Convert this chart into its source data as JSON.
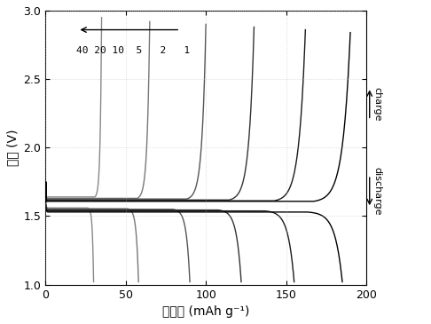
{
  "xlabel": "比容量 (mAh g⁻¹)",
  "ylabel": "电压 (V)",
  "xlim": [
    0,
    200
  ],
  "ylim": [
    1.0,
    3.0
  ],
  "xticks": [
    0,
    50,
    100,
    150,
    200
  ],
  "yticks": [
    1.0,
    1.5,
    2.0,
    2.5,
    3.0
  ],
  "background_color": "#ffffff",
  "figsize": [
    4.86,
    3.65
  ],
  "dpi": 100,
  "charge_capacities": [
    35,
    65,
    100,
    130,
    162,
    190
  ],
  "discharge_capacities": [
    30,
    58,
    90,
    122,
    155,
    185
  ],
  "charge_plateaus": [
    1.64,
    1.63,
    1.625,
    1.618,
    1.612,
    1.608
  ],
  "discharge_plateaus": [
    1.56,
    1.555,
    1.55,
    1.545,
    1.538,
    1.53
  ],
  "curve_colors": [
    "#000000",
    "#1a1a1a",
    "#2d2d2d",
    "#4d4d4d",
    "#777777",
    "#aaaaaa"
  ],
  "spike_color": "#000000",
  "charge_end_voltages": [
    2.95,
    2.92,
    2.9,
    2.88,
    2.86,
    2.84
  ],
  "discharge_end_voltages": [
    1.02,
    1.02,
    1.02,
    1.02,
    1.02,
    1.02
  ]
}
